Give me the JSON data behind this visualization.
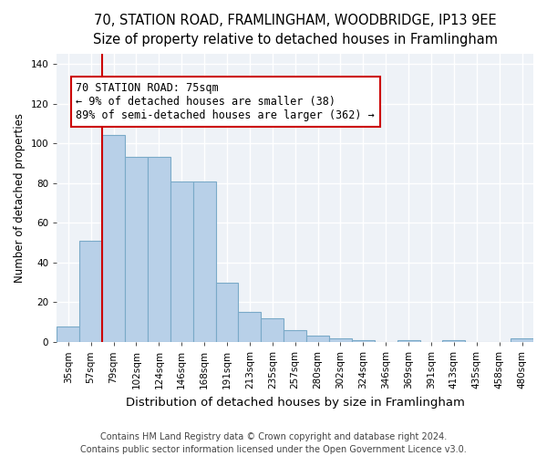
{
  "title_line1": "70, STATION ROAD, FRAMLINGHAM, WOODBRIDGE, IP13 9EE",
  "title_line2": "Size of property relative to detached houses in Framlingham",
  "xlabel": "Distribution of detached houses by size in Framlingham",
  "ylabel": "Number of detached properties",
  "footer_line1": "Contains HM Land Registry data © Crown copyright and database right 2024.",
  "footer_line2": "Contains public sector information licensed under the Open Government Licence v3.0.",
  "categories": [
    "35sqm",
    "57sqm",
    "79sqm",
    "102sqm",
    "124sqm",
    "146sqm",
    "168sqm",
    "191sqm",
    "213sqm",
    "235sqm",
    "257sqm",
    "280sqm",
    "302sqm",
    "324sqm",
    "346sqm",
    "369sqm",
    "391sqm",
    "413sqm",
    "435sqm",
    "458sqm",
    "480sqm"
  ],
  "values": [
    8,
    51,
    104,
    93,
    93,
    81,
    81,
    30,
    15,
    12,
    6,
    3,
    2,
    1,
    0,
    1,
    0,
    1,
    0,
    0,
    2
  ],
  "bar_color": "#b8d0e8",
  "bar_edge_color": "#7aaac8",
  "annotation_box_color": "#cc0000",
  "annotation_line_color": "#cc0000",
  "property_bin_index": 2,
  "annotation_text_line1": "70 STATION ROAD: 75sqm",
  "annotation_text_line2": "← 9% of detached houses are smaller (38)",
  "annotation_text_line3": "89% of semi-detached houses are larger (362) →",
  "ylim": [
    0,
    145
  ],
  "yticks": [
    0,
    20,
    40,
    60,
    80,
    100,
    120,
    140
  ],
  "background_color": "#eef2f7",
  "grid_color": "#ffffff",
  "title_fontsize": 10.5,
  "subtitle_fontsize": 9.5,
  "axis_label_fontsize": 8.5,
  "tick_fontsize": 7.5,
  "annotation_fontsize": 8.5,
  "footer_fontsize": 7.0
}
